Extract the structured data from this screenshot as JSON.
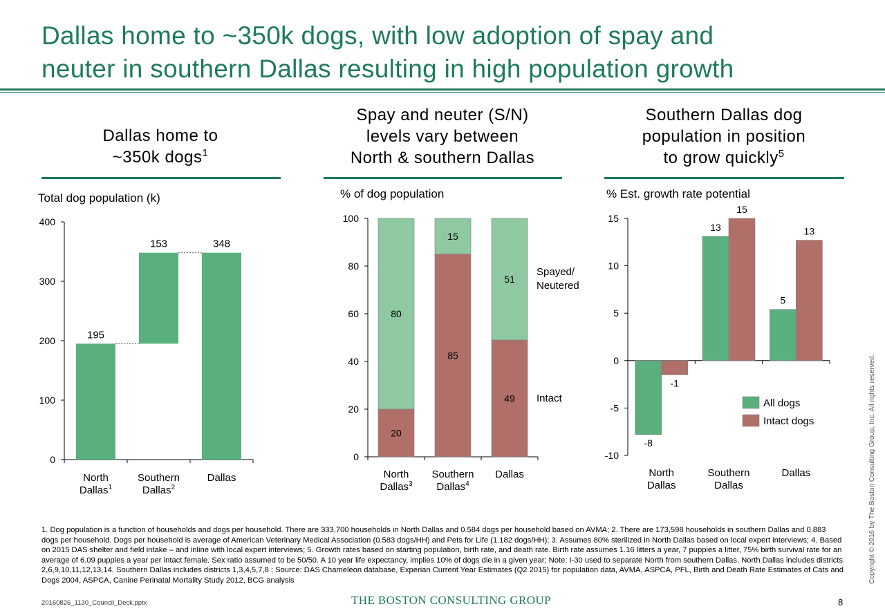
{
  "title_lines": [
    "Dallas home to ~350k dogs, with low adoption of spay and",
    "neuter in southern Dallas resulting in high population growth"
  ],
  "panels": [
    {
      "head_lines": [
        "Dallas home to",
        "~350k dogs"
      ],
      "head_sup": "1",
      "unit": "Total dog population (k)"
    },
    {
      "head_lines": [
        "Spay and neuter (S/N)",
        "levels vary between",
        "North & southern Dallas"
      ],
      "head_sup": "",
      "unit": "% of dog population"
    },
    {
      "head_lines": [
        "Southern Dallas dog",
        "population in position",
        "to grow quickly"
      ],
      "head_sup": "5",
      "unit": "% Est. growth rate potential"
    }
  ],
  "colors": {
    "title_green": "#1e7b5a",
    "bar_green": "#5aaf7e",
    "light_green": "#8ec9a1",
    "bar_red": "#b07069"
  },
  "chart_data": [
    {
      "type": "bar",
      "subtype": "waterfall",
      "categories": [
        {
          "line1": "North",
          "line2": "Dallas",
          "sup": "1"
        },
        {
          "line1": "Southern",
          "line2": "Dallas",
          "sup": "2"
        },
        {
          "line1": "Dallas",
          "line2": "",
          "sup": ""
        }
      ],
      "values": [
        195,
        153,
        348
      ],
      "bases": [
        0,
        195,
        0
      ],
      "labels": [
        "195",
        "153",
        "348"
      ],
      "ylabel": "Total dog population (k)",
      "ylim": [
        0,
        400
      ],
      "yticks": [
        0,
        100,
        200,
        300,
        400
      ]
    },
    {
      "type": "bar",
      "subtype": "stacked-100",
      "categories": [
        {
          "line1": "North",
          "line2": "Dallas",
          "sup": "3"
        },
        {
          "line1": "Southern",
          "line2": "Dallas",
          "sup": "4"
        },
        {
          "line1": "Dallas",
          "line2": "",
          "sup": ""
        }
      ],
      "series": [
        {
          "name": "Intact",
          "values": [
            20,
            85,
            49
          ]
        },
        {
          "name_lines": [
            "Spayed/",
            "Neutered"
          ],
          "values": [
            80,
            15,
            51
          ]
        }
      ],
      "ylabel": "% of dog population",
      "ylim": [
        0,
        100
      ],
      "yticks": [
        0,
        20,
        40,
        60,
        80,
        100
      ]
    },
    {
      "type": "bar",
      "subtype": "grouped",
      "categories": [
        {
          "line1": "North",
          "line2": "Dallas"
        },
        {
          "line1": "Southern",
          "line2": "Dallas"
        },
        {
          "line1": "Dallas",
          "line2": ""
        }
      ],
      "series": [
        {
          "name": "All dogs",
          "values": [
            -7.8,
            13.1,
            5.4
          ],
          "labels": [
            "-8",
            "13",
            "5"
          ]
        },
        {
          "name": "Intact dogs",
          "values": [
            -1.5,
            15.0,
            12.7
          ],
          "labels": [
            "-1",
            "15",
            "13"
          ]
        }
      ],
      "ylabel": "% Est. growth rate potential",
      "ylim": [
        -10,
        15
      ],
      "yticks": [
        -10,
        -5,
        0,
        5,
        10,
        15
      ],
      "legend": "bottom-right"
    }
  ],
  "footnotes": "1. Dog population is a function of households and dogs per household. There are 333,700 households in North Dallas and 0.584 dogs per household based on AVMA; 2. There are 173,598 households in southern Dallas and 0.883 dogs per household. Dogs per household is average of American Veterinary Medical Association (0.583 dogs/HH) and Pets for Life (1.182 dogs/HH); 3. Assumes 80% sterilized in North Dallas based on local expert interviews; 4. Based on 2015 DAS shelter and field intake – and inline with local expert interviews; 5. Growth rates based on starting population, birth rate, and death rate. Birth rate assumes 1.16 litters a year, 7 puppies a litter, 75% birth survival rate for an average of 6.09 puppies a year per intact female. Sex ratio assumed to be 50/50. A 10 year life expectancy, implies 10% of dogs die in a given year; Note: I-30 used to separate North from southern Dallas. North Dallas includes districts 2,6,9,10,11,12,13,14. Southern Dallas includes districts 1,3,4,5,7,8 ; Source: DAS Chameleon database, Experian Current Year Estimates (Q2 2015) for population data, AVMA, ASPCA, PFL, Birth and Death Rate Estimates of Cats and Dogs 2004, ASPCA, Canine Perinatal Mortality Study 2012, BCG analysis",
  "file_id": "20160826_1130_Council_Deck.pptx",
  "brand": "THE BOSTON CONSULTING GROUP",
  "page_number": "8",
  "copyright": "Copyright © 2016 by The Boston Consulting Group, Inc. All rights reserved."
}
